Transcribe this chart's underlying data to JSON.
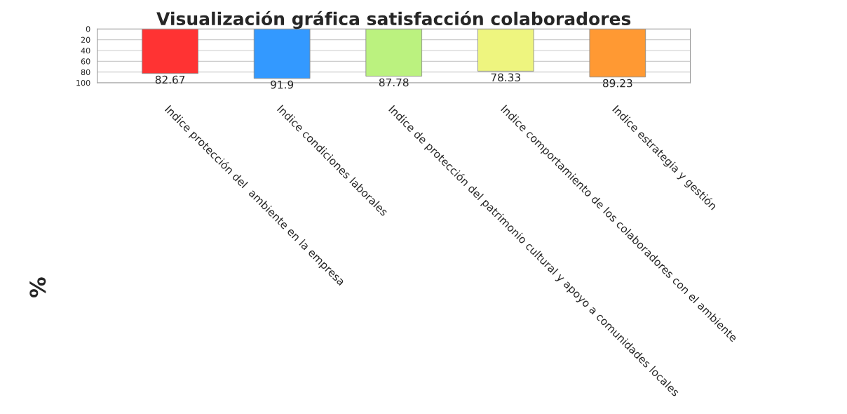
{
  "chart_data": {
    "type": "bar",
    "title": "Visualización gráfica satisfacción colaboradores",
    "ylabel": "%",
    "categories": [
      "Indice protección del  ambiente en la empresa",
      "Indice condiciones laborales",
      "Indice de protección del patrimonio cultural y apoyo a comunidades locales",
      "Indice comportamiento de los colaboradores con el ambiente",
      "Indice estrategia y gestión"
    ],
    "values": [
      82.67,
      91.9,
      87.78,
      78.33,
      89.23
    ],
    "colors": [
      "#ff3333",
      "#3399ff",
      "#bbf27f",
      "#eef57f",
      "#ff9933"
    ],
    "ylim": [
      100,
      0
    ],
    "yticks": [
      0,
      20,
      40,
      60,
      80,
      100
    ],
    "grid": "y",
    "data_labels": true
  }
}
